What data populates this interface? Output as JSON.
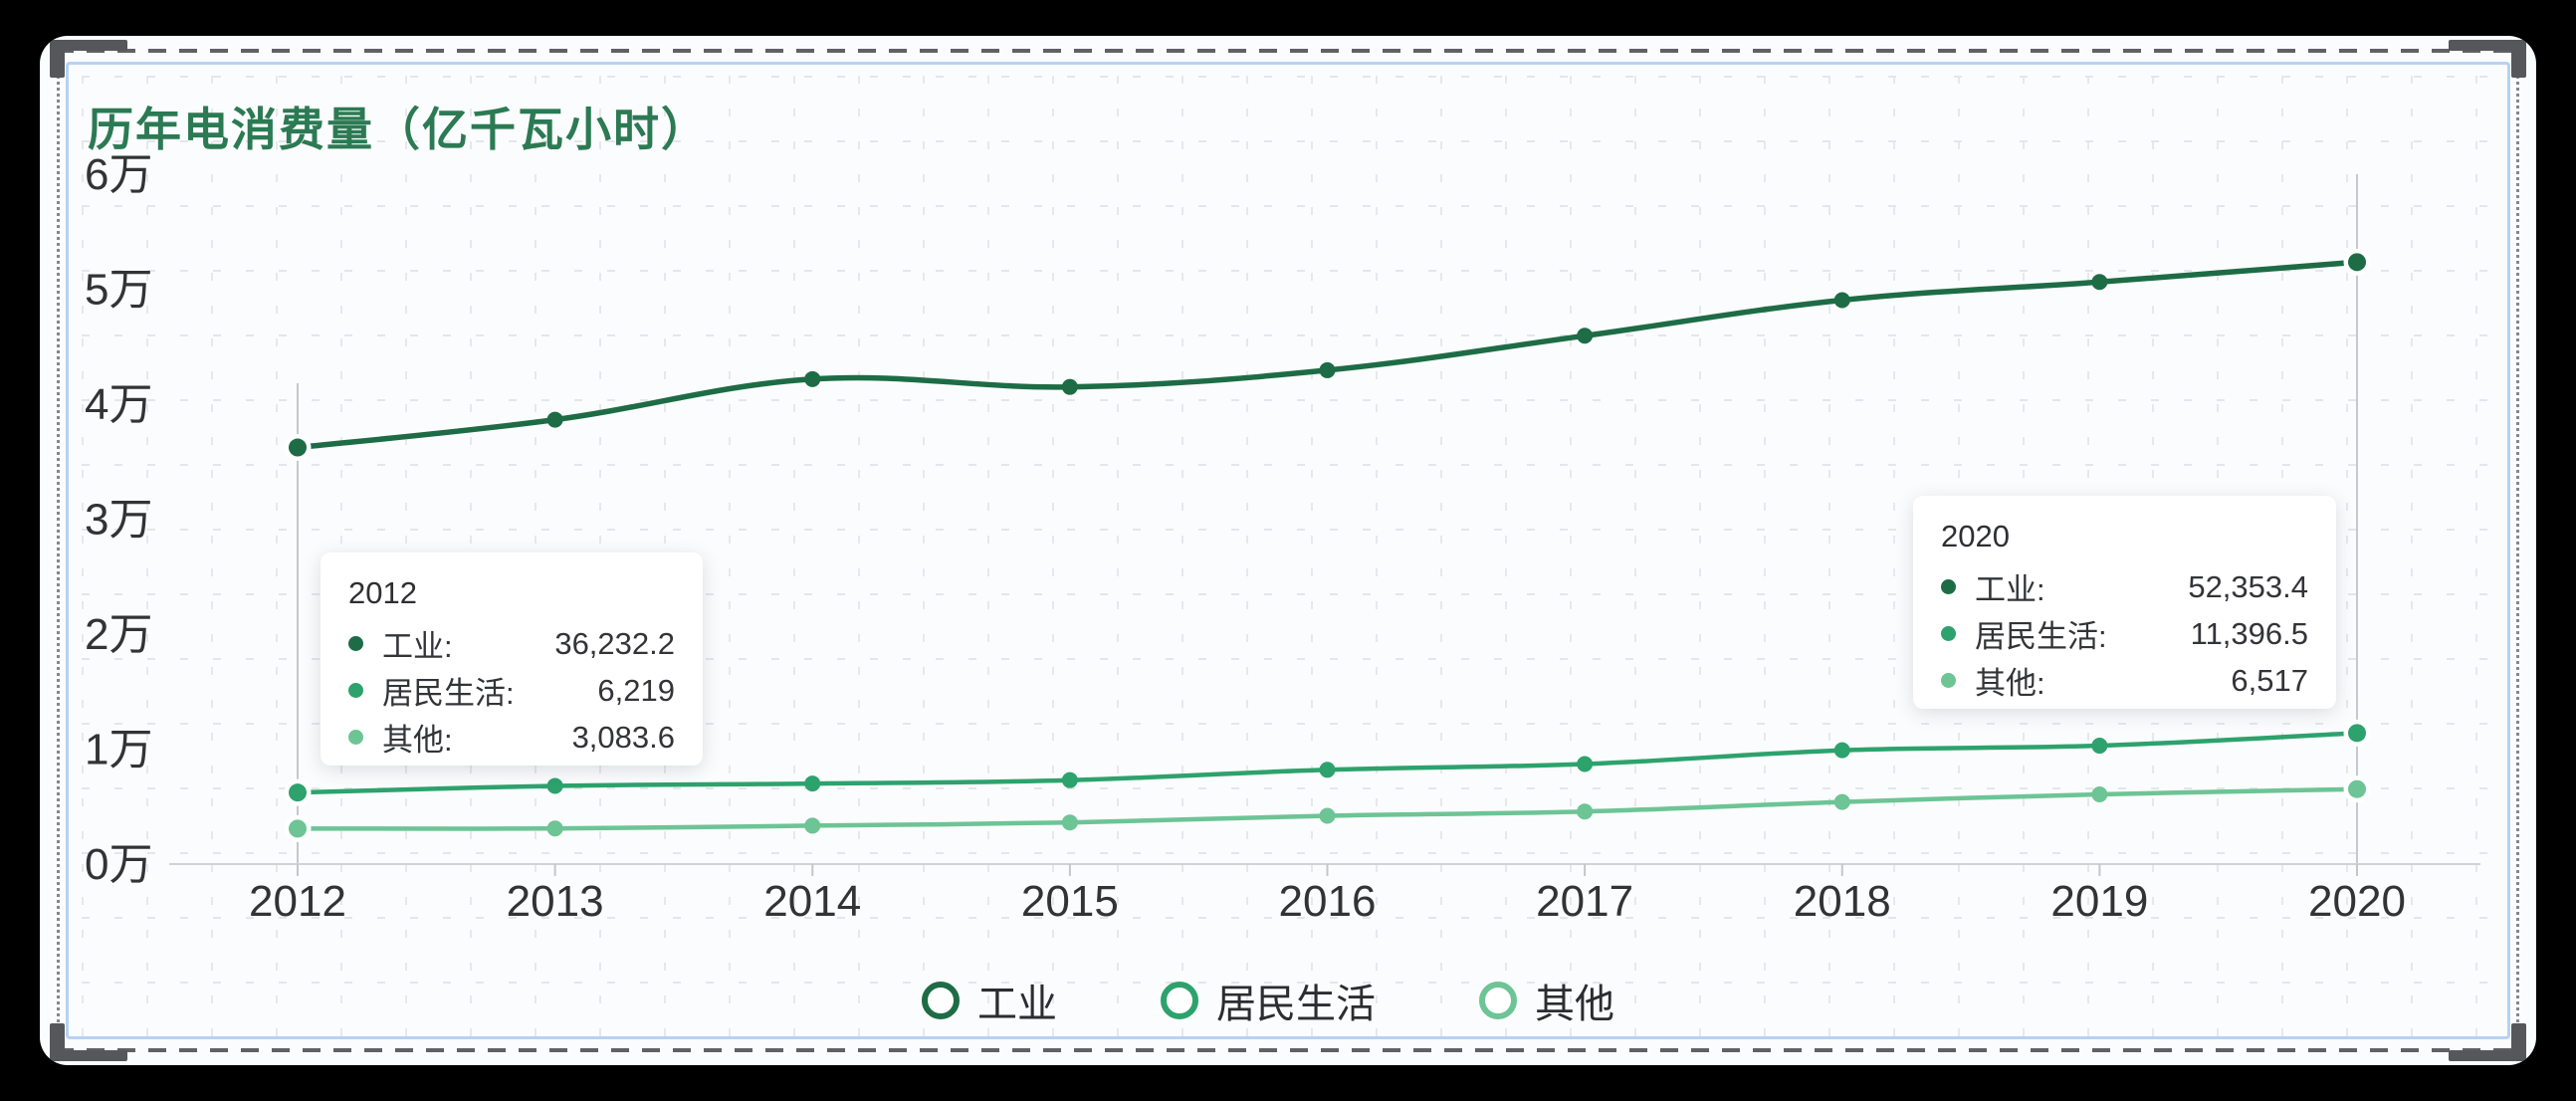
{
  "canvas": {
    "background_color": "#000000",
    "card_background": "#fbfcfd",
    "selection_outline_color": "#b7d1f3",
    "handle_color": "#55575b"
  },
  "chart": {
    "title": "历年电消费量（亿千瓦小时）",
    "title_color": "#2b7a53",
    "axis_color": "#d0d2d5"
  },
  "chart_data": {
    "type": "line",
    "x": [
      "2012",
      "2013",
      "2014",
      "2015",
      "2016",
      "2017",
      "2018",
      "2019",
      "2020"
    ],
    "series": [
      {
        "name": "工业",
        "color": "#1d6c46",
        "values": [
          36232.2,
          38650,
          42180,
          41500,
          42950,
          45950,
          49050,
          50630,
          52353.4
        ]
      },
      {
        "name": "居民生活",
        "color": "#2da26d",
        "values": [
          6219,
          6800,
          7000,
          7300,
          8200,
          8700,
          9900,
          10300,
          11396.5
        ]
      },
      {
        "name": "其他",
        "color": "#6dc495",
        "values": [
          3083.6,
          3100,
          3340,
          3620,
          4200,
          4570,
          5400,
          6060,
          6517
        ]
      }
    ],
    "title": "历年电消费量（亿千瓦小时）",
    "xlabel": "",
    "ylabel": "",
    "ytick_labels": [
      "0万",
      "1万",
      "2万",
      "3万",
      "4万",
      "5万",
      "6万"
    ],
    "ylim": [
      0,
      60000
    ],
    "grid": "canvas dotted grid only",
    "legend_position": "bottom-center",
    "legend": [
      "工业",
      "居民生活",
      "其他"
    ],
    "highlighted_year_indices": [
      0,
      8
    ]
  },
  "tooltips": [
    {
      "year": "2012",
      "rows": [
        {
          "label": "工业:",
          "value": "36,232.2",
          "color": "#1d6c46"
        },
        {
          "label": "居民生活:",
          "value": "6,219",
          "color": "#2da26d"
        },
        {
          "label": "其他:",
          "value": "3,083.6",
          "color": "#6dc495"
        }
      ]
    },
    {
      "year": "2020",
      "rows": [
        {
          "label": "工业:",
          "value": "52,353.4",
          "color": "#1d6c46"
        },
        {
          "label": "居民生活:",
          "value": "11,396.5",
          "color": "#2da26d"
        },
        {
          "label": "其他:",
          "value": "6,517",
          "color": "#6dc495"
        }
      ]
    }
  ]
}
